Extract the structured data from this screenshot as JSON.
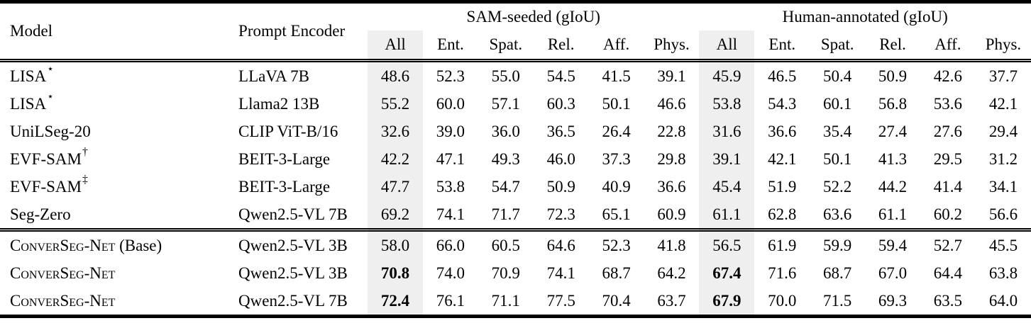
{
  "table": {
    "col1_header": "Model",
    "col2_header": "Prompt Encoder",
    "groups": [
      {
        "label": "SAM-seeded (gIoU)"
      },
      {
        "label": "Human-annotated (gIoU)"
      }
    ],
    "subcolumns": [
      "All",
      "Ent.",
      "Spat.",
      "Rel.",
      "Aff.",
      "Phys."
    ],
    "highlight_color": "#efefef",
    "sections": [
      {
        "rows": [
          {
            "model": "LISA",
            "sup": "⋆",
            "encoder": "LLaVA 7B",
            "sam": [
              "48.6",
              "52.3",
              "55.0",
              "54.5",
              "41.5",
              "39.1"
            ],
            "human": [
              "45.9",
              "46.5",
              "50.4",
              "50.9",
              "42.6",
              "37.7"
            ]
          },
          {
            "model": "LISA",
            "sup": "⋆",
            "encoder": "Llama2 13B",
            "sam": [
              "55.2",
              "60.0",
              "57.1",
              "60.3",
              "50.1",
              "46.6"
            ],
            "human": [
              "53.8",
              "54.3",
              "60.1",
              "56.8",
              "53.6",
              "42.1"
            ]
          },
          {
            "model": "UniLSeg-20",
            "encoder": "CLIP ViT-B/16",
            "sam": [
              "32.6",
              "39.0",
              "36.0",
              "36.5",
              "26.4",
              "22.8"
            ],
            "human": [
              "31.6",
              "36.6",
              "35.4",
              "27.4",
              "27.6",
              "29.4"
            ]
          },
          {
            "model": "EVF-SAM",
            "sup": "†",
            "encoder": "BEIT-3-Large",
            "sam": [
              "42.2",
              "47.1",
              "49.3",
              "46.0",
              "37.3",
              "29.8"
            ],
            "human": [
              "39.1",
              "42.1",
              "50.1",
              "41.3",
              "29.5",
              "31.2"
            ]
          },
          {
            "model": "EVF-SAM",
            "sup": "‡",
            "encoder": "BEIT-3-Large",
            "sam": [
              "47.7",
              "53.8",
              "54.7",
              "50.9",
              "40.9",
              "36.6"
            ],
            "human": [
              "45.4",
              "51.9",
              "52.2",
              "44.2",
              "41.4",
              "34.1"
            ]
          },
          {
            "model": "Seg-Zero",
            "encoder": "Qwen2.5-VL 7B",
            "sam": [
              "69.2",
              "74.1",
              "71.7",
              "72.3",
              "65.1",
              "60.9"
            ],
            "human": [
              "61.1",
              "62.8",
              "63.6",
              "61.1",
              "60.2",
              "56.6"
            ]
          }
        ]
      },
      {
        "rows": [
          {
            "model_sc": "ConverSeg-Net",
            "model_rest": " (Base)",
            "encoder": "Qwen2.5-VL 3B",
            "sam": [
              "58.0",
              "66.0",
              "60.5",
              "64.6",
              "52.3",
              "41.8"
            ],
            "human": [
              "56.5",
              "61.9",
              "59.9",
              "59.4",
              "52.7",
              "45.5"
            ]
          },
          {
            "model_sc": "ConverSeg-Net",
            "encoder": "Qwen2.5-VL 3B",
            "bold_all": true,
            "sam": [
              "70.8",
              "74.0",
              "70.9",
              "74.1",
              "68.7",
              "64.2"
            ],
            "human": [
              "67.4",
              "71.6",
              "68.7",
              "67.0",
              "64.4",
              "63.8"
            ]
          },
          {
            "model_sc": "ConverSeg-Net",
            "encoder": "Qwen2.5-VL 7B",
            "bold_all": true,
            "sam": [
              "72.4",
              "76.1",
              "71.1",
              "77.5",
              "70.4",
              "63.7"
            ],
            "human": [
              "67.9",
              "70.0",
              "71.5",
              "69.3",
              "63.5",
              "64.0"
            ]
          }
        ]
      }
    ]
  }
}
